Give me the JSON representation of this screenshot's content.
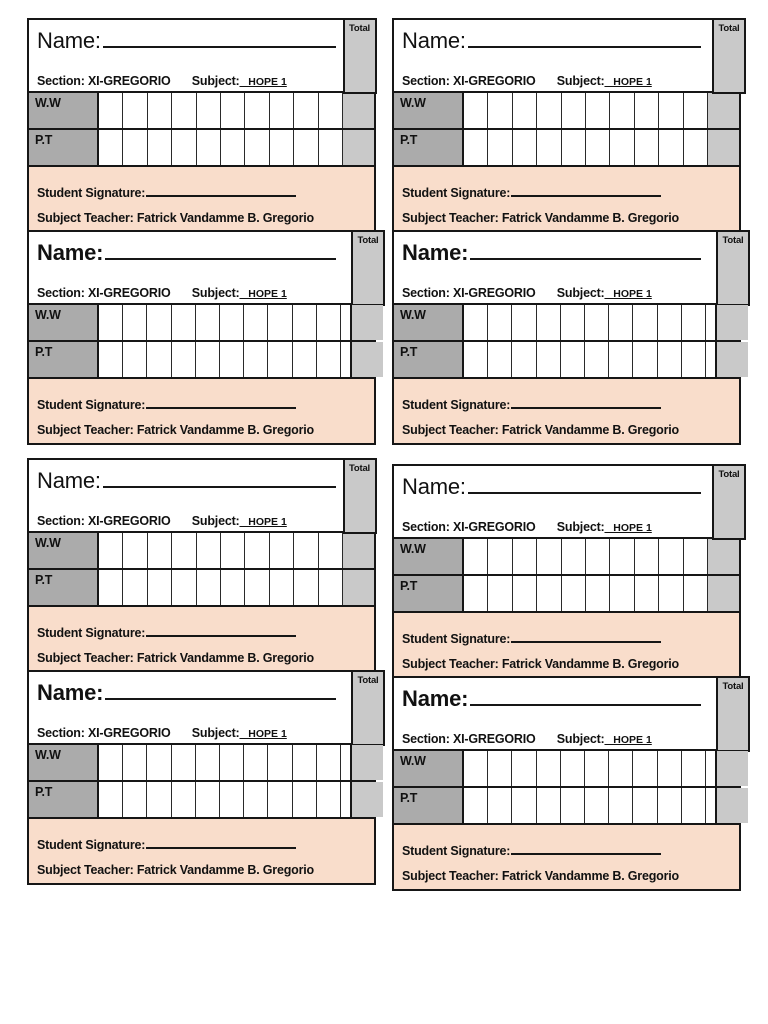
{
  "colors": {
    "border": "#161616",
    "label_gray": "#ababab",
    "total_gray": "#c9c9c9",
    "footer_peach": "#f9ddcb",
    "page_background": "#ffffff"
  },
  "cards": [
    {
      "name_label": "Name:",
      "section_label": "Section: XI-GREGORIO",
      "subject_label": "Subject:",
      "subject_value": "_ HOPE 1",
      "ww_label": "W.W",
      "pt_label": "P.T",
      "total_label": "Total",
      "signature_label": "Student Signature:",
      "teacher_label": "Subject Teacher: Fatrick Vandamme B. Gregorio"
    },
    {
      "name_label": "Name:",
      "section_label": "Section: XI-GREGORIO",
      "subject_label": "Subject:",
      "subject_value": "_ HOPE 1",
      "ww_label": "W.W",
      "pt_label": "P.T",
      "total_label": "Total",
      "signature_label": "Student Signature:",
      "teacher_label": "Subject Teacher: Fatrick Vandamme B. Gregorio"
    },
    {
      "name_label": "Name:",
      "section_label": "Section: XI-GREGORIO",
      "subject_label": "Subject:",
      "subject_value": "_ HOPE 1",
      "ww_label": "W.W",
      "pt_label": "P.T",
      "total_label": "Total",
      "signature_label": "Student Signature:",
      "teacher_label": "Subject Teacher: Fatrick Vandamme B. Gregorio"
    },
    {
      "name_label": "Name:",
      "section_label": "Section: XI-GREGORIO",
      "subject_label": "Subject:",
      "subject_value": "_ HOPE 1",
      "ww_label": "W.W",
      "pt_label": "P.T",
      "total_label": "Total",
      "signature_label": "Student Signature:",
      "teacher_label": "Subject Teacher: Fatrick Vandamme B. Gregorio"
    },
    {
      "name_label": "Name:",
      "section_label": "Section: XI-GREGORIO",
      "subject_label": "Subject:",
      "subject_value": "_ HOPE 1",
      "ww_label": "W.W",
      "pt_label": "P.T",
      "total_label": "Total",
      "signature_label": "Student Signature:",
      "teacher_label": "Subject Teacher: Fatrick Vandamme B. Gregorio"
    },
    {
      "name_label": "Name:",
      "section_label": "Section: XI-GREGORIO",
      "subject_label": "Subject:",
      "subject_value": "_ HOPE 1",
      "ww_label": "W.W",
      "pt_label": "P.T",
      "total_label": "Total",
      "signature_label": "Student Signature:",
      "teacher_label": "Subject Teacher: Fatrick Vandamme B. Gregorio"
    },
    {
      "name_label": "Name:",
      "section_label": "Section: XI-GREGORIO",
      "subject_label": "Subject:",
      "subject_value": "_ HOPE 1",
      "ww_label": "W.W",
      "pt_label": "P.T",
      "total_label": "Total",
      "signature_label": "Student Signature:",
      "teacher_label": "Subject Teacher: Fatrick Vandamme B. Gregorio"
    },
    {
      "name_label": "Name:",
      "section_label": "Section: XI-GREGORIO",
      "subject_label": "Subject:",
      "subject_value": "_ HOPE 1",
      "ww_label": "W.W",
      "pt_label": "P.T",
      "total_label": "Total",
      "signature_label": "Student Signature:",
      "teacher_label": "Subject Teacher: Fatrick Vandamme B. Gregorio"
    }
  ]
}
